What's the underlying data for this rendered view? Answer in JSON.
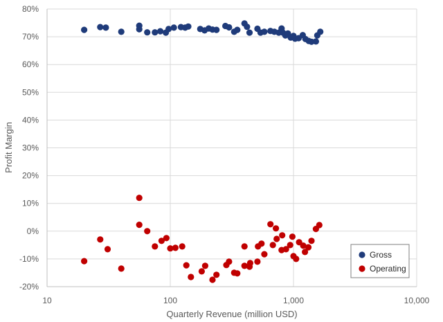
{
  "chart_data": {
    "type": "scatter",
    "title": "",
    "xlabel": "Quarterly Revenue (million USD)",
    "ylabel": "Profit Margin",
    "xscale": "log",
    "xlim": [
      10,
      10000
    ],
    "ylim": [
      -20,
      80
    ],
    "grid": true,
    "legend_position": "bottom-right",
    "x_ticks": [
      {
        "value": 10,
        "label": "10"
      },
      {
        "value": 100,
        "label": "100"
      },
      {
        "value": 1000,
        "label": "1,000"
      },
      {
        "value": 10000,
        "label": "10,000"
      }
    ],
    "y_ticks": [
      {
        "value": -20,
        "label": "-20%"
      },
      {
        "value": -10,
        "label": "-10%"
      },
      {
        "value": 0,
        "label": "0%"
      },
      {
        "value": 10,
        "label": "10%"
      },
      {
        "value": 20,
        "label": "20%"
      },
      {
        "value": 30,
        "label": "30%"
      },
      {
        "value": 40,
        "label": "40%"
      },
      {
        "value": 50,
        "label": "50%"
      },
      {
        "value": 60,
        "label": "60%"
      },
      {
        "value": 70,
        "label": "70%"
      },
      {
        "value": 80,
        "label": "80%"
      }
    ],
    "series": [
      {
        "name": "Gross",
        "color": "#1f3b7a",
        "points": [
          [
            20,
            72.5
          ],
          [
            27,
            73.5
          ],
          [
            30,
            73.3
          ],
          [
            40,
            71.8
          ],
          [
            56,
            74.0
          ],
          [
            56,
            72.7
          ],
          [
            65,
            71.6
          ],
          [
            75,
            71.6
          ],
          [
            83,
            72.0
          ],
          [
            92,
            71.5
          ],
          [
            97,
            72.8
          ],
          [
            107,
            73.3
          ],
          [
            122,
            73.5
          ],
          [
            132,
            73.3
          ],
          [
            140,
            73.7
          ],
          [
            175,
            72.8
          ],
          [
            190,
            72.3
          ],
          [
            205,
            73.0
          ],
          [
            220,
            72.6
          ],
          [
            237,
            72.5
          ],
          [
            280,
            73.9
          ],
          [
            300,
            73.4
          ],
          [
            330,
            71.8
          ],
          [
            350,
            72.5
          ],
          [
            400,
            74.8
          ],
          [
            420,
            73.6
          ],
          [
            440,
            71.5
          ],
          [
            510,
            72.9
          ],
          [
            540,
            71.5
          ],
          [
            580,
            71.8
          ],
          [
            650,
            72.1
          ],
          [
            700,
            71.8
          ],
          [
            760,
            71.5
          ],
          [
            800,
            73.0
          ],
          [
            820,
            71.5
          ],
          [
            860,
            70.5
          ],
          [
            900,
            71.2
          ],
          [
            950,
            69.7
          ],
          [
            1000,
            70.3
          ],
          [
            1030,
            69.3
          ],
          [
            1100,
            69.5
          ],
          [
            1190,
            70.6
          ],
          [
            1250,
            69.2
          ],
          [
            1330,
            68.5
          ],
          [
            1400,
            68.2
          ],
          [
            1520,
            68.3
          ],
          [
            1560,
            70.5
          ],
          [
            1650,
            71.8
          ]
        ]
      },
      {
        "name": "Operating",
        "color": "#c00000",
        "points": [
          [
            20,
            -10.8
          ],
          [
            27,
            -3.0
          ],
          [
            31,
            -6.5
          ],
          [
            40,
            -13.5
          ],
          [
            56,
            12.0
          ],
          [
            56,
            2.3
          ],
          [
            65,
            0.0
          ],
          [
            75,
            -5.5
          ],
          [
            85,
            -3.5
          ],
          [
            93,
            -2.5
          ],
          [
            100,
            -6.2
          ],
          [
            110,
            -6.0
          ],
          [
            125,
            -5.5
          ],
          [
            135,
            -12.3
          ],
          [
            147,
            -16.5
          ],
          [
            180,
            -14.5
          ],
          [
            192,
            -12.5
          ],
          [
            220,
            -17.5
          ],
          [
            237,
            -15.7
          ],
          [
            285,
            -12.2
          ],
          [
            300,
            -11.0
          ],
          [
            330,
            -15.0
          ],
          [
            350,
            -15.2
          ],
          [
            400,
            -12.5
          ],
          [
            400,
            -5.5
          ],
          [
            440,
            -12.8
          ],
          [
            445,
            -11.5
          ],
          [
            510,
            -11.0
          ],
          [
            515,
            -5.5
          ],
          [
            550,
            -4.5
          ],
          [
            580,
            -8.3
          ],
          [
            650,
            2.5
          ],
          [
            680,
            -5.0
          ],
          [
            720,
            1.0
          ],
          [
            730,
            -2.8
          ],
          [
            800,
            -6.8
          ],
          [
            810,
            -1.5
          ],
          [
            870,
            -6.5
          ],
          [
            940,
            -5.0
          ],
          [
            980,
            -2.0
          ],
          [
            1000,
            -9.0
          ],
          [
            1050,
            -10.0
          ],
          [
            1110,
            -4.0
          ],
          [
            1200,
            -5.2
          ],
          [
            1240,
            -7.5
          ],
          [
            1320,
            -5.8
          ],
          [
            1400,
            -3.5
          ],
          [
            1520,
            0.8
          ],
          [
            1620,
            2.2
          ]
        ]
      }
    ]
  }
}
